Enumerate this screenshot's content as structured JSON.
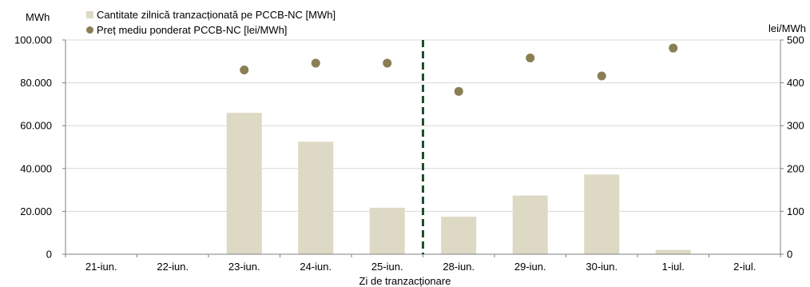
{
  "chart_data": {
    "type": "bar",
    "categories": [
      "21-iun.",
      "22-iun.",
      "23-iun.",
      "24-iun.",
      "25-iun.",
      "28-iun.",
      "29-iun.",
      "30-iun.",
      "1-iul.",
      "2-iul."
    ],
    "series": [
      {
        "name": "Cantitate zilnică tranzacționată pe PCCB-NC [MWh]",
        "type": "bar",
        "axis": "left",
        "color": "#ddd9c4",
        "values": [
          0,
          0,
          66000,
          52500,
          21700,
          17500,
          27400,
          37200,
          2000,
          0
        ]
      },
      {
        "name": "Preț mediu ponderat PCCB-NC [lei/MWh]",
        "type": "scatter",
        "axis": "right",
        "color": "#8b7e54",
        "values": [
          null,
          null,
          430,
          446,
          446,
          380,
          458,
          416,
          481,
          null
        ]
      }
    ],
    "left_axis": {
      "unit": "MWh",
      "ylim": [
        0,
        100000
      ],
      "ticks": [
        0,
        20000,
        40000,
        60000,
        80000,
        100000
      ],
      "tick_labels": [
        "0",
        "20.000",
        "40.000",
        "60.000",
        "80.000",
        "100.000"
      ]
    },
    "right_axis": {
      "unit": "lei/MWh",
      "ylim": [
        0,
        500
      ],
      "ticks": [
        0,
        100,
        200,
        300,
        400,
        500
      ],
      "tick_labels": [
        "0",
        "100",
        "200",
        "300",
        "400",
        "500"
      ]
    },
    "xlabel": "Zi de tranzacționare",
    "divider": {
      "after_category": "25-iun.",
      "color": "#1f4d2b",
      "style": "dashed"
    },
    "grid": true,
    "legend_position": "top-left"
  }
}
